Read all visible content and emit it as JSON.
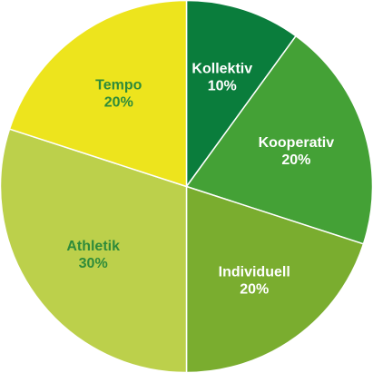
{
  "chart_data": {
    "type": "pie",
    "start_angle_deg": 0,
    "direction": "clockwise",
    "slices": [
      {
        "label": "Kollektiv",
        "percent_label": "10%",
        "value": 10,
        "color": "#0a7d3c",
        "label_color": "#ffffff"
      },
      {
        "label": "Kooperativ",
        "percent_label": "20%",
        "value": 20,
        "color": "#44a136",
        "label_color": "#ffffff"
      },
      {
        "label": "Individuell",
        "percent_label": "20%",
        "value": 20,
        "color": "#7aad2f",
        "label_color": "#ffffff"
      },
      {
        "label": "Athletik",
        "percent_label": "30%",
        "value": 30,
        "color": "#bcd04b",
        "label_color": "#2e8b3a"
      },
      {
        "label": "Tempo",
        "percent_label": "20%",
        "value": 20,
        "color": "#ede41d",
        "label_color": "#2e8b3a"
      }
    ],
    "separator_color": "#ffffff"
  }
}
